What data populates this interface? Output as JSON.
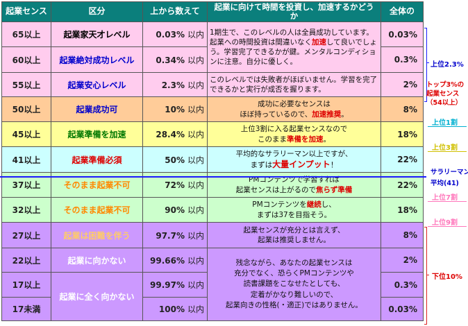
{
  "headers": {
    "score": "起業センス",
    "category": "区分",
    "rank": "上から数えて",
    "comment": "起業に向けて時間を投資し、加速するかどうか",
    "share": "全体の"
  },
  "rows": [
    {
      "score": "65以上",
      "category": "起業家天才レベル",
      "rank": "0.03%",
      "unit": "以内",
      "share": "0.03%"
    },
    {
      "score": "60以上",
      "category": "起業絶対成功レベル",
      "rank": "0.34%",
      "unit": "以内",
      "share": "0.3%"
    },
    {
      "score": "55以上",
      "category": "起業安心レベル",
      "rank": "2.3%",
      "unit": "以内",
      "share": "2%"
    },
    {
      "score": "50以上",
      "category": "起業成功可",
      "rank": "10%",
      "unit": "以内",
      "share": "8%"
    },
    {
      "score": "45以上",
      "category": "起業準備を加速",
      "rank": "28.4%",
      "unit": "以内",
      "share": "18%"
    },
    {
      "score": "41以上",
      "category": "起業準備必須",
      "rank": "50%",
      "unit": "以内",
      "share": "22%"
    },
    {
      "score": "37以上",
      "category": "そのまま起業不可",
      "rank": "72%",
      "unit": "以内",
      "share": "22%"
    },
    {
      "score": "32以上",
      "category": "そのまま起業不可",
      "rank": "90%",
      "unit": "以内",
      "share": "18%"
    },
    {
      "score": "27以上",
      "category": "起業は困難を伴う",
      "rank": "97.7%",
      "unit": "以内",
      "share": "8%"
    },
    {
      "score": "22以上",
      "category": "起業に向かない",
      "rank": "99.66%",
      "unit": "以内",
      "share": "2%"
    },
    {
      "score": "17以上",
      "category": "起業に全く向かない",
      "rank": "99.97%",
      "unit": "以内",
      "share": "0.3%"
    },
    {
      "score": "17未満",
      "category": "",
      "rank": "100%",
      "unit": "以内",
      "share": "0.03%"
    }
  ],
  "comments": {
    "c1": {
      "t1": "1期生で、このレベルの人は全員成功しています。起業への時間投資は間違いなく",
      "red": "加速",
      "t2": "して良いでしょう。学習完了できるかが鍵。メンタルコンディションに注意。自分に優しく。"
    },
    "c2": "このレベルでは失敗者がほぼいません。学習を完了できるかと実行が成否を握ります。",
    "c3": {
      "line1": "成功に必要なセンスは",
      "line2a": "ほぼ持っているので、",
      "red": "加速推奨",
      "line2b": "。"
    },
    "c4": {
      "line1": "上位3割に入る起業センスなので",
      "line2a": "このまま",
      "red": "準備を加速",
      "line2b": "。"
    },
    "c5": {
      "line1": "平均的なサラリーマン以上ですが、",
      "line2a": "まずは",
      "red": "大量インプット",
      "line2b": "！"
    },
    "c6": {
      "line1": "PMコンテンツで学習すれば",
      "line2a": "起業センスは上がるので",
      "red": "焦らず準備"
    },
    "c7": {
      "line1a": "PMコンテンツを",
      "red": "継続",
      "line1b": "し、",
      "line2": "まずは37を目指そう。"
    },
    "c8": {
      "line1": "起業センスが充分とは言えず、",
      "line2": "起業は推奨しません。"
    },
    "c9": {
      "line1": "残念ながら、あなたの起業センスは",
      "line2": "充分でなく、恐らくPMコンテンツや",
      "line3": "読書課題をこなせたとしても、",
      "line4": "定着がかなり難しいので、",
      "line5": "起業向きの性格(・適正)ではありません。"
    }
  },
  "annotations": {
    "top23": "上位2.3%",
    "top3a": "トップ3%の",
    "top3b": "起業センス",
    "top3c": "（54以上）",
    "top10": "上位1割",
    "top30": "上位3割",
    "avg1": "サラリーマン",
    "avg2": "平均(41)",
    "top70": "上位7割",
    "top90": "上位9割",
    "bottom10": "下位10%"
  },
  "colors": {
    "header_bg": "#0b7f7c",
    "pink": "#ffccee",
    "orange": "#ffcc99",
    "yellow": "#ffff99",
    "cyan": "#ccffff",
    "green": "#ccffcc",
    "purple": "#cc99ff",
    "red_text": "#dd0000",
    "blue_text": "#0000cc"
  }
}
